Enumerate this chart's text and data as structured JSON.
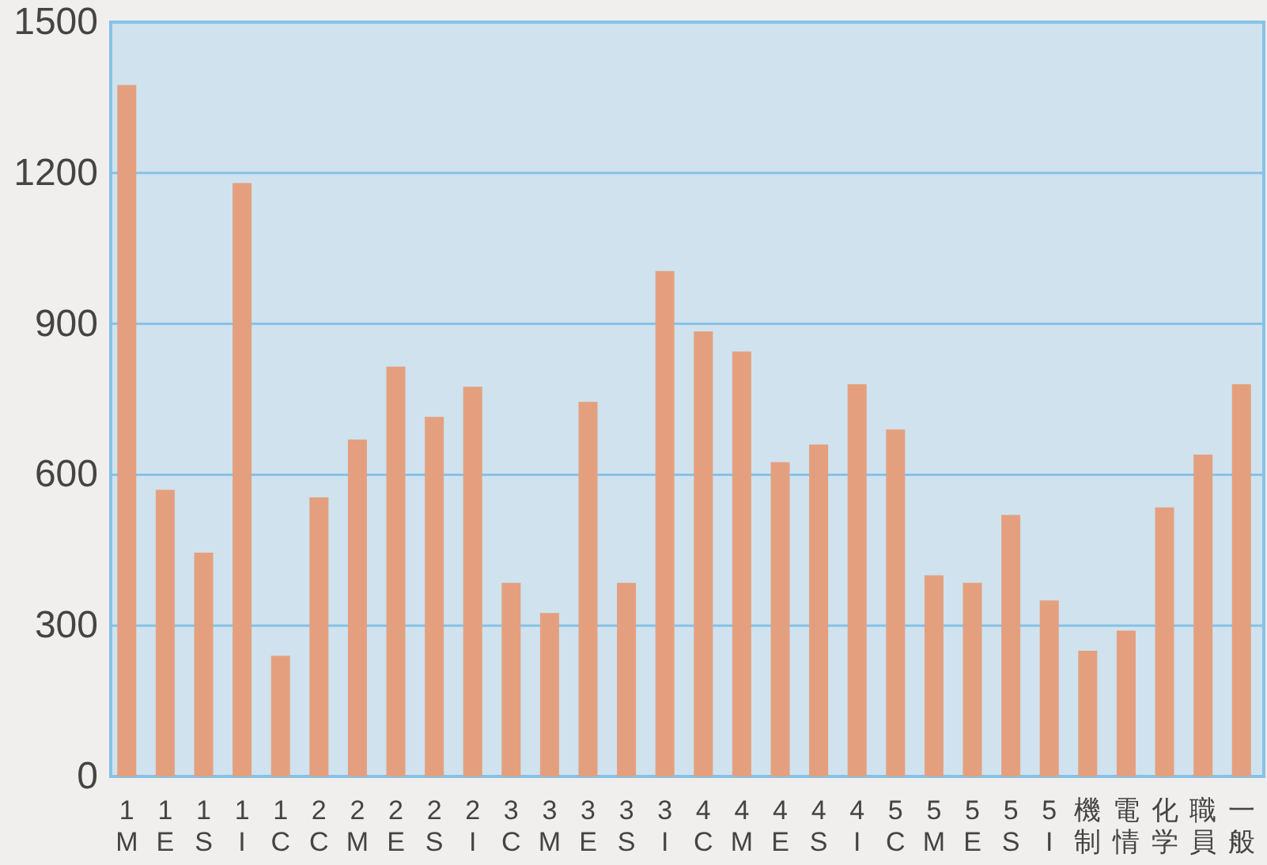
{
  "chart_data": {
    "type": "bar",
    "categories": [
      "1M",
      "1E",
      "1S",
      "1I",
      "1C",
      "2C",
      "2M",
      "2E",
      "2S",
      "2I",
      "3C",
      "3M",
      "3E",
      "3S",
      "3I",
      "4C",
      "4M",
      "4E",
      "4S",
      "4I",
      "5C",
      "5M",
      "5E",
      "5S",
      "5I",
      "機制",
      "電情",
      "化学",
      "職員",
      "一般"
    ],
    "values": [
      1375,
      570,
      445,
      1180,
      240,
      555,
      670,
      815,
      715,
      775,
      385,
      325,
      745,
      385,
      1005,
      885,
      845,
      625,
      660,
      780,
      690,
      400,
      385,
      520,
      350,
      250,
      290,
      535,
      640,
      780
    ],
    "color": "#e4a07e",
    "ylim": [
      0,
      1500
    ],
    "yticks": [
      0,
      300,
      600,
      900,
      1200,
      1500
    ],
    "grid": "y"
  }
}
